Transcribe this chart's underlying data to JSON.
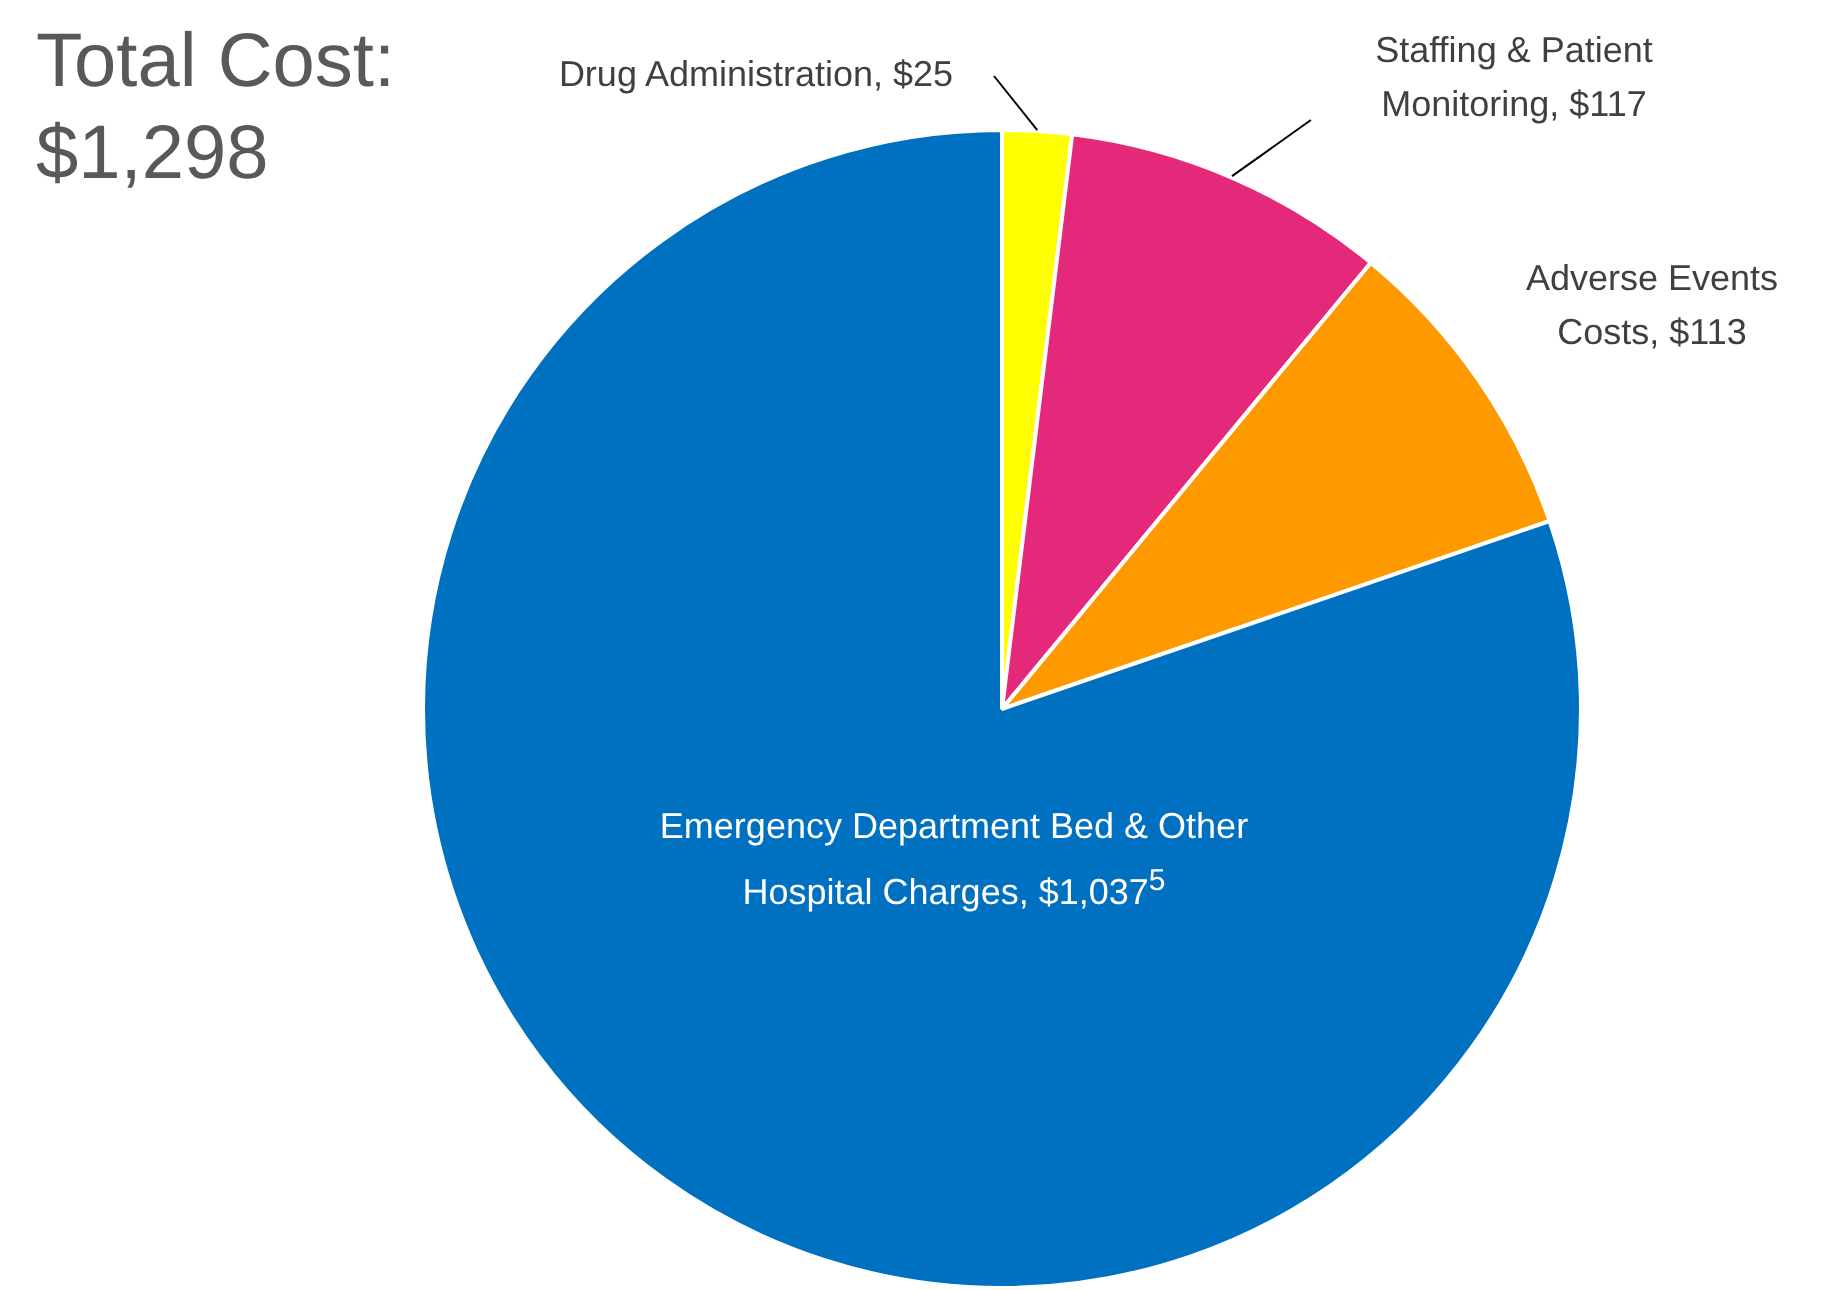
{
  "chart_data": {
    "type": "pie",
    "title": "Total Cost: $1,298",
    "categories": [
      "Drug Administration",
      "Staffing & Patient Monitoring",
      "Adverse Events Costs",
      "Emergency Department Bed & Other Hospital Charges"
    ],
    "values": [
      25,
      117,
      113,
      1037
    ],
    "value_labels": [
      "$25",
      "$117",
      "$113",
      "$1,037$^{5}$"
    ],
    "colors": [
      "#ffff00",
      "#e5297a",
      "#ff9900",
      "#0070c0"
    ],
    "legend": false
  }
}
